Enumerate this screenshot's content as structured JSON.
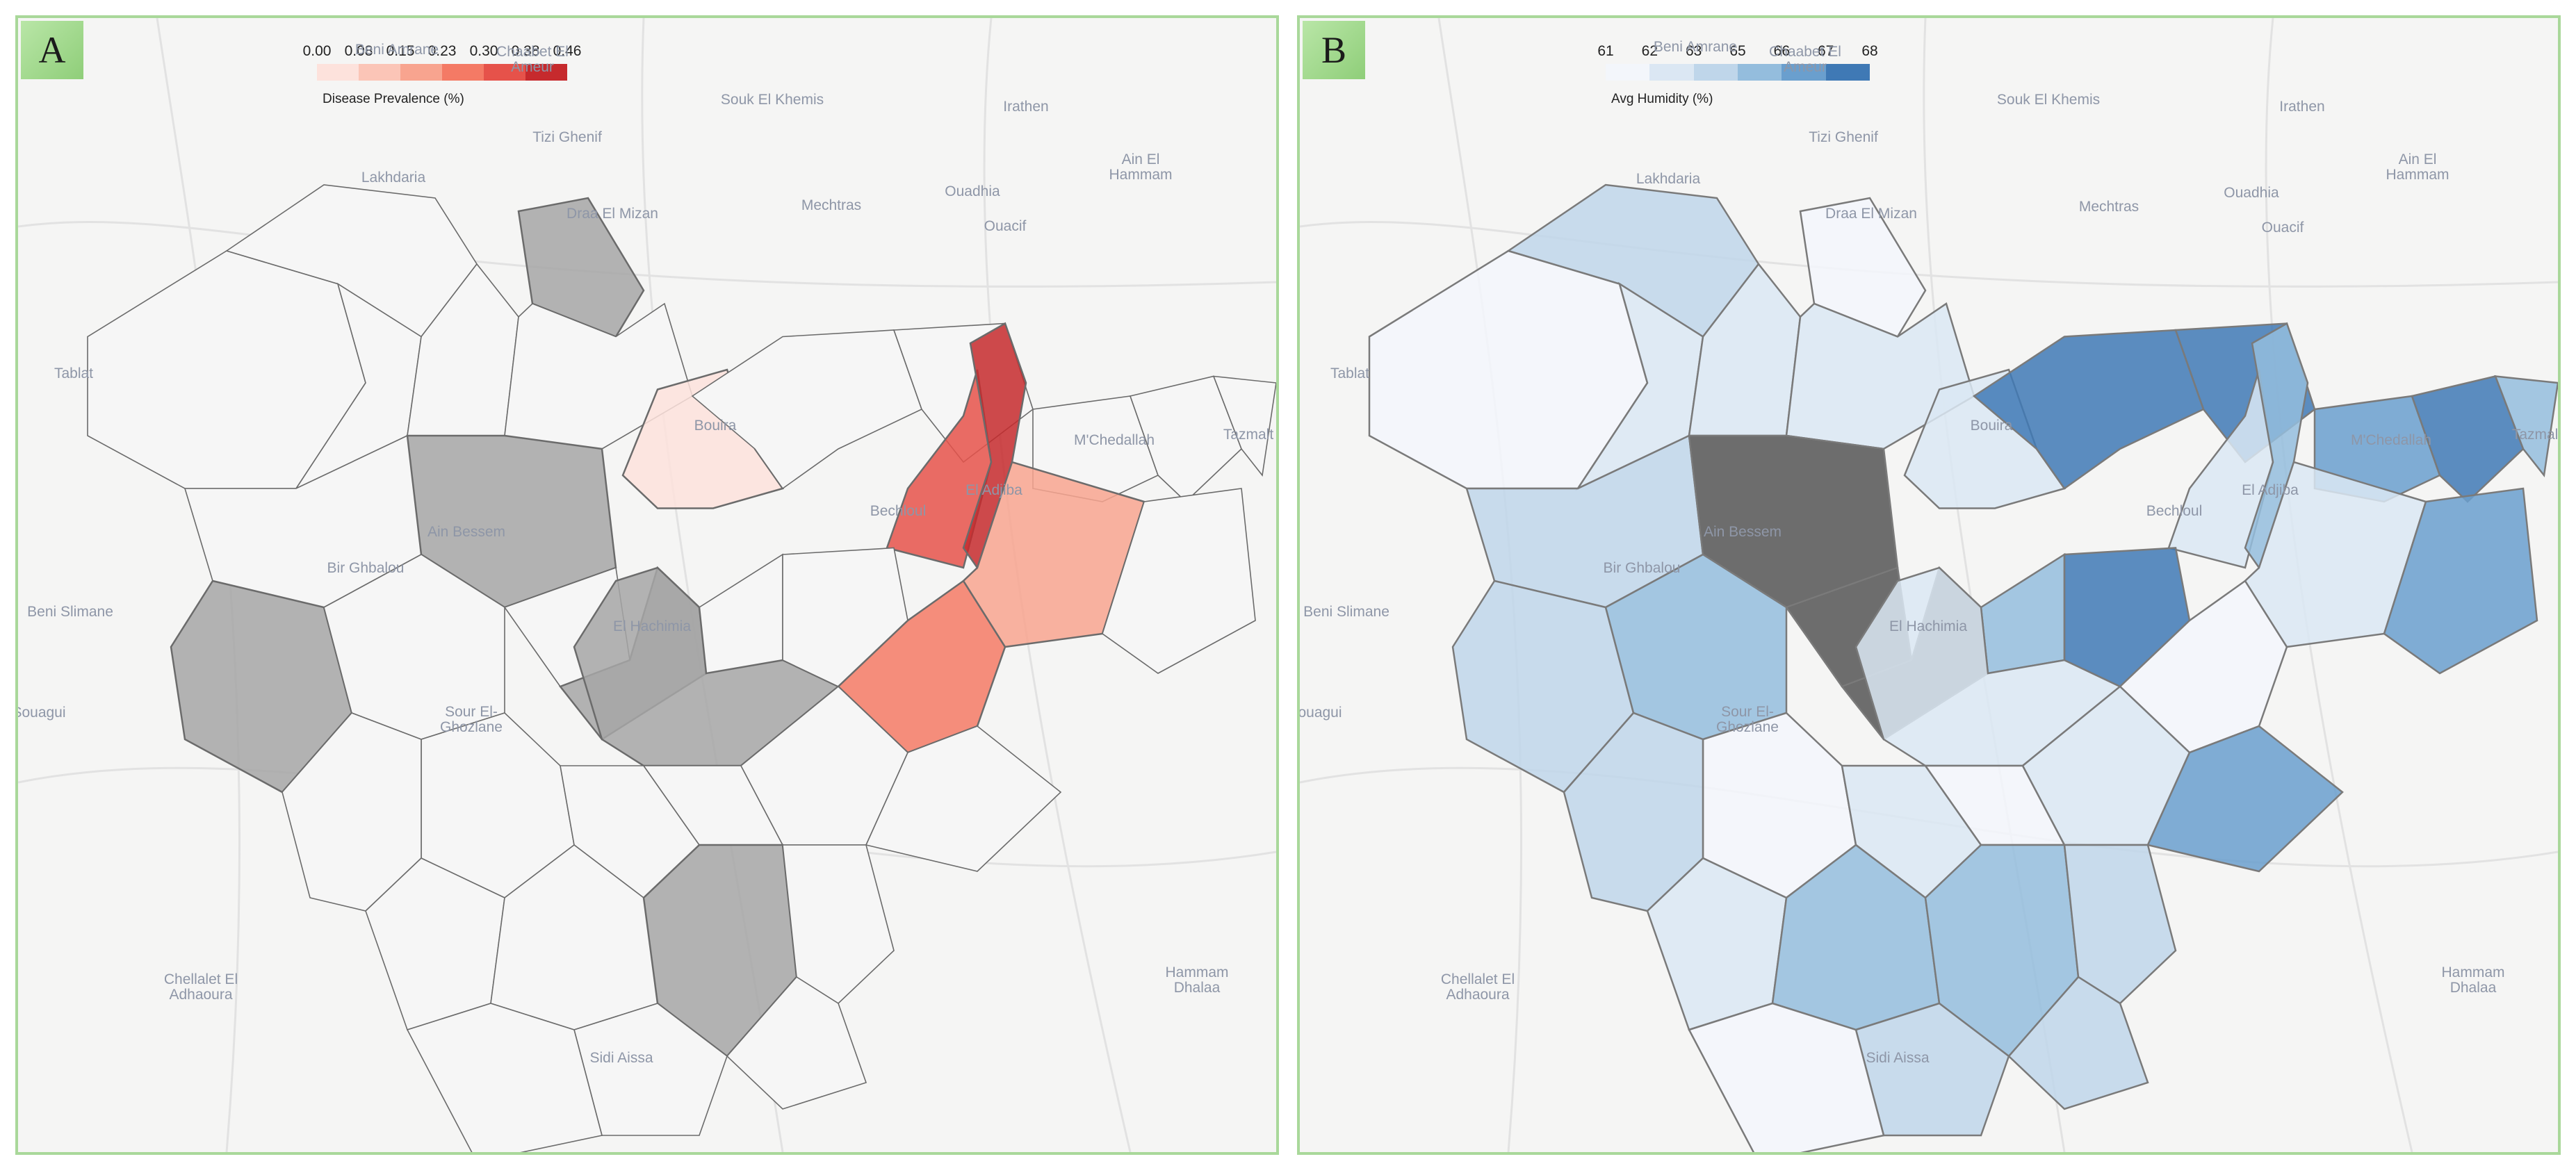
{
  "panels": [
    {
      "label": "A",
      "legend": {
        "title": "Disease Prevalence (%)",
        "ticks": [
          "0.00",
          "0.08",
          "0.15",
          "0.23",
          "0.30",
          "0.38",
          "0.46"
        ],
        "colors": [
          "#fde2dc",
          "#fbc5b7",
          "#f8a48f",
          "#f47a65",
          "#e6524a",
          "#c62a2d"
        ],
        "no_data_color": "#a6a6a6"
      }
    },
    {
      "label": "B",
      "legend": {
        "title": "Avg Humidity (%)",
        "ticks": [
          "61",
          "62",
          "63",
          "65",
          "66",
          "67",
          "68"
        ],
        "colors": [
          "#f3f6fb",
          "#dbe7f3",
          "#bfd6ea",
          "#94bddd",
          "#6a9fce",
          "#3f79b5"
        ],
        "no_data_color": "#555555"
      }
    }
  ],
  "place_labels": [
    {
      "name": "Beni Amrane"
    },
    {
      "name": "Chaabet El Ameur"
    },
    {
      "name": "Tizi Ghenif"
    },
    {
      "name": "Lakhdaria"
    },
    {
      "name": "Draa El Mizan"
    },
    {
      "name": "Mechtras"
    },
    {
      "name": "Ouadhia"
    },
    {
      "name": "Ain El Hammam"
    },
    {
      "name": "Ouacif"
    },
    {
      "name": "Souk El Khemis"
    },
    {
      "name": "Irathen"
    },
    {
      "name": "Tablat"
    },
    {
      "name": "Bouira"
    },
    {
      "name": "M'Chedallah"
    },
    {
      "name": "Tazmalt"
    },
    {
      "name": "El Adjiba"
    },
    {
      "name": "Bechloul"
    },
    {
      "name": "Ain Bessem"
    },
    {
      "name": "Bir Ghbalou"
    },
    {
      "name": "Beni Slimane"
    },
    {
      "name": "El Hachimia"
    },
    {
      "name": "Sour El-Ghozlane"
    },
    {
      "name": "Souagui"
    },
    {
      "name": "Chellalet El Adhaoura"
    },
    {
      "name": "Sidi Aissa"
    },
    {
      "name": "Hammam Dhalaa"
    }
  ]
}
